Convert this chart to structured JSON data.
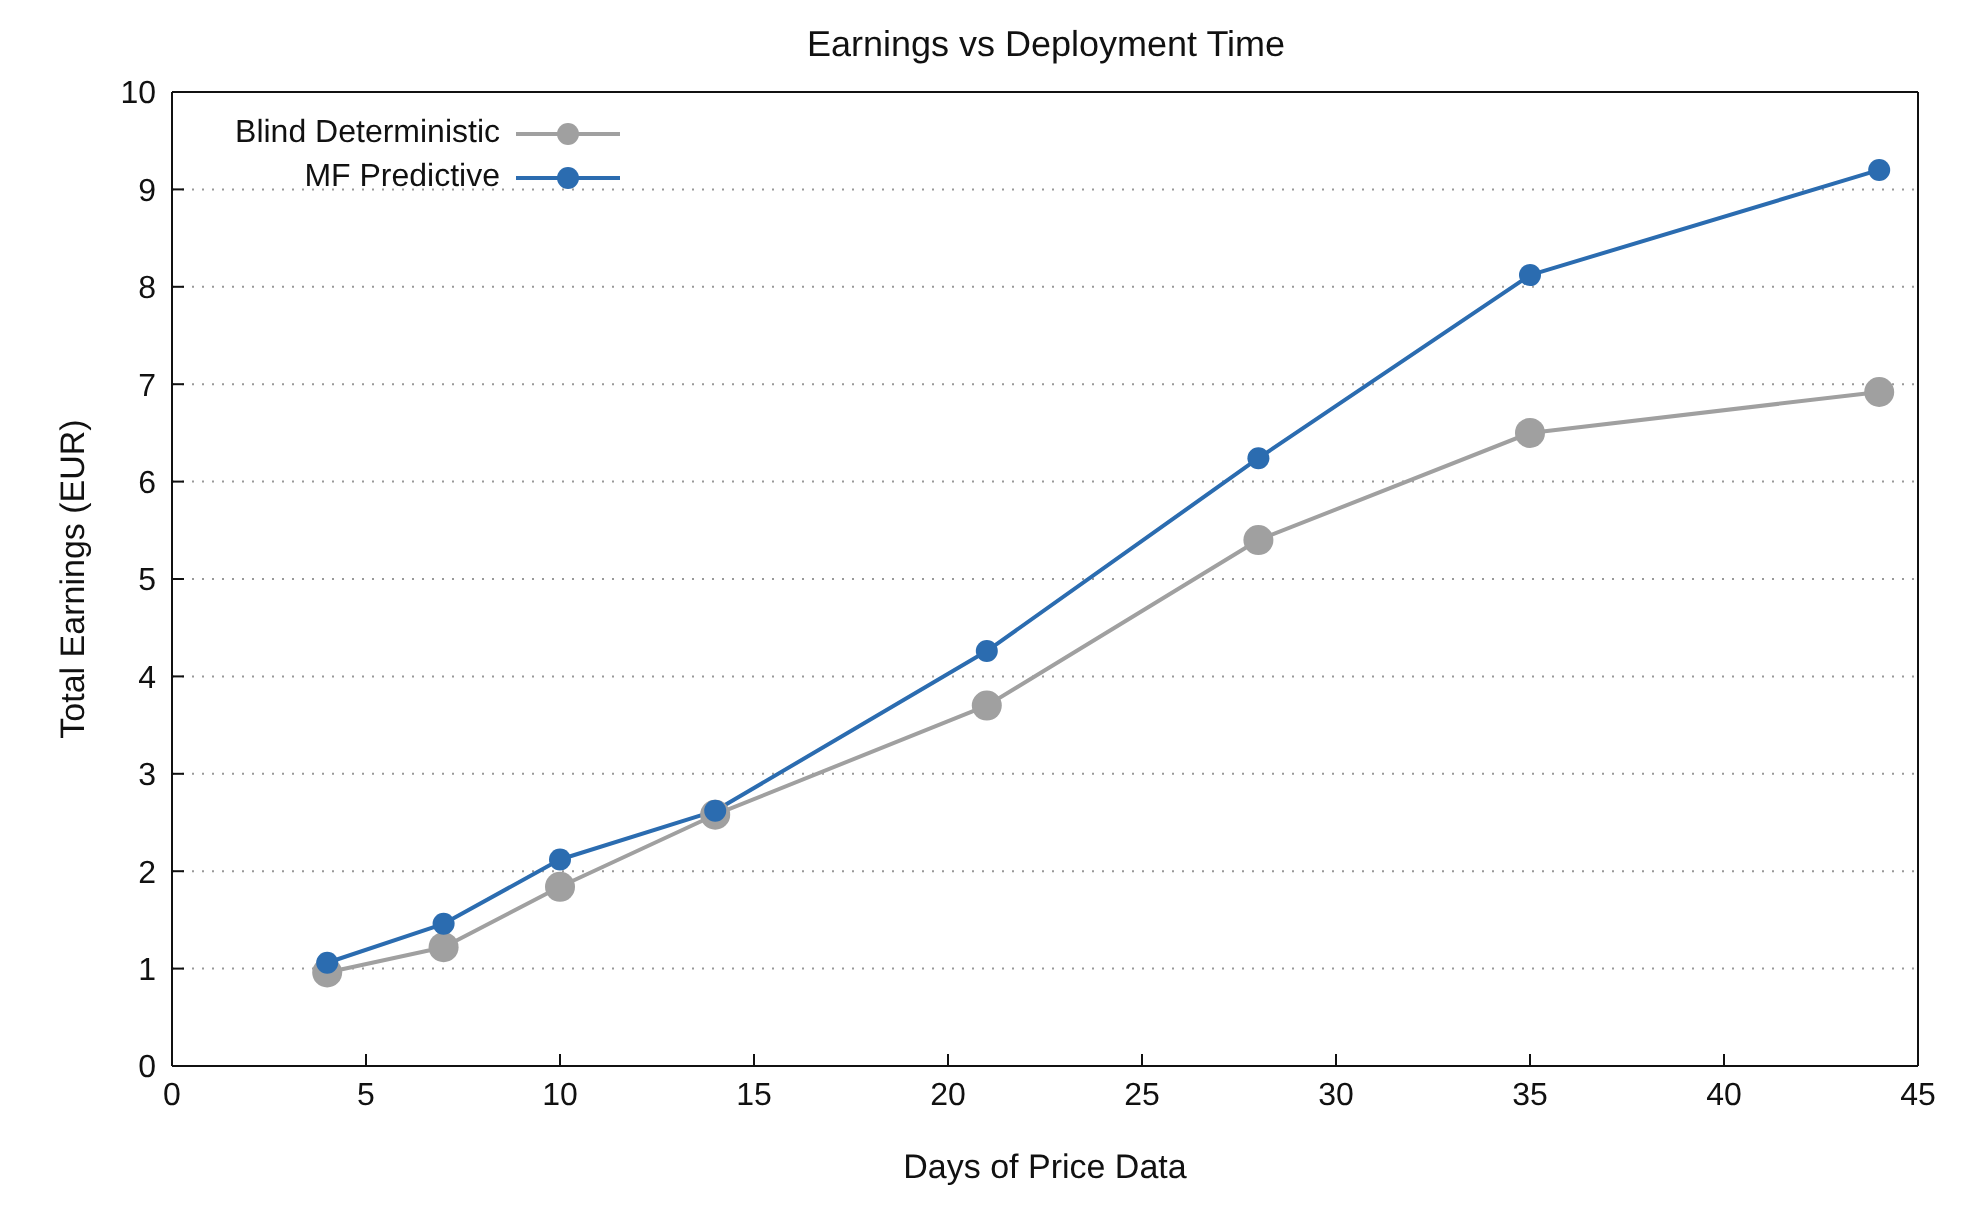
{
  "chart_data": {
    "type": "line",
    "title": "Earnings vs Deployment Time",
    "xlabel": "Days of Price Data",
    "ylabel": "Total Earnings (EUR)",
    "x": [
      4,
      7,
      10,
      14,
      21,
      28,
      35,
      44
    ],
    "series": [
      {
        "name": "Blind Deterministic",
        "color": "#a0a0a0",
        "values": [
          0.96,
          1.22,
          1.84,
          2.58,
          3.7,
          5.4,
          6.5,
          6.92
        ]
      },
      {
        "name": "MF Predictive",
        "color": "#2b6cb0",
        "values": [
          1.06,
          1.46,
          2.12,
          2.62,
          4.26,
          6.24,
          8.12,
          9.2
        ]
      }
    ],
    "xlim": [
      0,
      45
    ],
    "xticks": [
      0,
      5,
      10,
      15,
      20,
      25,
      30,
      35,
      40,
      45
    ],
    "ylim": [
      0,
      10
    ],
    "yticks": [
      0,
      1,
      2,
      3,
      4,
      5,
      6,
      7,
      8,
      9,
      10
    ],
    "grid": "y",
    "legend": "top left",
    "marker": "circle",
    "line_style": "solid"
  }
}
